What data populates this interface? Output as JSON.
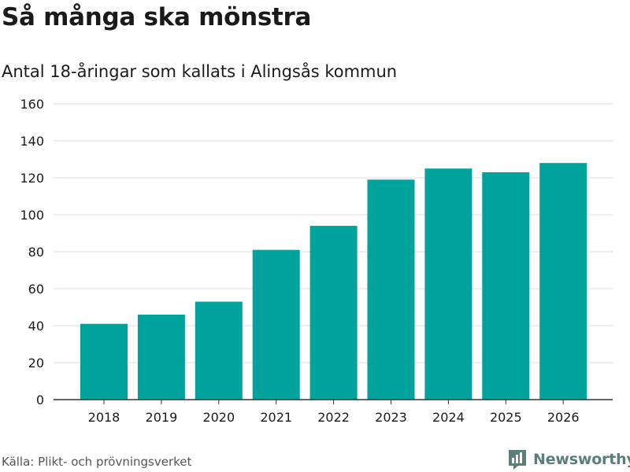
{
  "header": {
    "title": "Så många ska mönstra",
    "subtitle": "Antal 18-åringar som kallats i Alingsås kommun"
  },
  "footer": {
    "source": "Källa: Plikt- och prövningsverket",
    "brand": "Newsworthy",
    "brand_icon": "bar-chart-icon"
  },
  "colors": {
    "bar": "#00a39b",
    "grid": "#dddddd",
    "axis": "#333333",
    "brand": "#5a7f7a"
  },
  "chart_data": {
    "type": "bar",
    "title": "Så många ska mönstra",
    "subtitle": "Antal 18-åringar som kallats i Alingsås kommun",
    "categories": [
      "2018",
      "2019",
      "2020",
      "2021",
      "2022",
      "2023",
      "2024",
      "2025",
      "2026"
    ],
    "values": [
      41,
      46,
      53,
      81,
      94,
      119,
      125,
      123,
      128
    ],
    "xlabel": "",
    "ylabel": "",
    "ylim": [
      0,
      160
    ],
    "yticks": [
      0,
      20,
      40,
      60,
      80,
      100,
      120,
      140,
      160
    ],
    "grid": true,
    "legend": "none"
  }
}
